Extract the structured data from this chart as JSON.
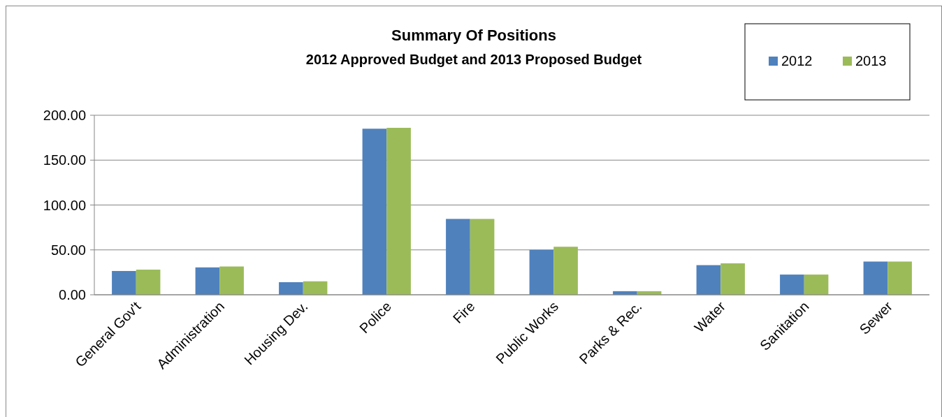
{
  "chart_data": {
    "type": "bar",
    "title": "Summary Of Positions",
    "subtitle": "2012 Approved Budget and 2013 Proposed Budget",
    "categories": [
      "General Gov't",
      "Administration",
      "Housing Dev.",
      "Police",
      "Fire",
      "Public Works",
      "Parks & Rec.",
      "Water",
      "Sanitation",
      "Sewer"
    ],
    "series": [
      {
        "name": "2012",
        "color": "#4f81bd",
        "values": [
          26.5,
          30.5,
          14,
          185,
          84.5,
          50,
          4,
          33,
          22.5,
          37
        ]
      },
      {
        "name": "2013",
        "color": "#9bbb59",
        "values": [
          28,
          31.5,
          15,
          186,
          84.5,
          53.5,
          4,
          35,
          22.5,
          37
        ]
      }
    ],
    "ylim": [
      0,
      200
    ],
    "yticks": [
      {
        "value": 0,
        "label": "0.00"
      },
      {
        "value": 50,
        "label": "50.00"
      },
      {
        "value": 100,
        "label": "100.00"
      },
      {
        "value": 150,
        "label": "150.00"
      },
      {
        "value": 200,
        "label": "200.00"
      }
    ],
    "grid": "y",
    "legend": "top right"
  }
}
